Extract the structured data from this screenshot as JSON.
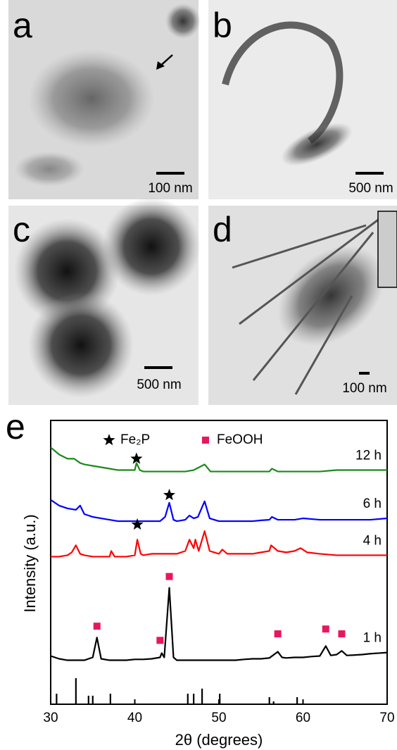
{
  "panels": [
    {
      "label": "a",
      "scale_bar": "100 nm"
    },
    {
      "label": "b",
      "scale_bar": "500 nm"
    },
    {
      "label": "c",
      "scale_bar": "500 nm"
    },
    {
      "label": "d",
      "scale_bar": "100 nm"
    }
  ],
  "chart_data": {
    "type": "line",
    "panel_label": "e",
    "x_label": "2θ (degrees)",
    "y_label": "Intensity (a.u.)",
    "xlim": [
      30,
      70
    ],
    "xticks": [
      30,
      40,
      50,
      60,
      70
    ],
    "ylim": [
      0,
      100
    ],
    "legend": "top",
    "series": [
      {
        "name": "12 h",
        "color": "#1a8a1a",
        "x": [
          30,
          31,
          32,
          32.8,
          33.5,
          34,
          35,
          36,
          37,
          38,
          39,
          40,
          40.2,
          40.6,
          41,
          42,
          43,
          44,
          45,
          46,
          47,
          48.3,
          49,
          50,
          52,
          54,
          56,
          56.3,
          57,
          58,
          60,
          62,
          64,
          66,
          68,
          70
        ],
        "values": [
          90.5,
          88,
          86.5,
          86.5,
          85,
          84.5,
          84,
          83.5,
          83,
          82.5,
          82.5,
          82.5,
          85,
          82.5,
          82,
          82,
          82,
          82,
          82,
          82,
          82.5,
          84.5,
          82,
          82,
          82,
          82,
          82,
          83,
          82,
          82,
          82,
          82,
          82.5,
          82.5,
          82.5,
          82.5
        ]
      },
      {
        "name": "6 h",
        "color": "#0000ff",
        "x": [
          30,
          31,
          32,
          33,
          33.5,
          34,
          35,
          36,
          37,
          38,
          39,
          40,
          41,
          42,
          43,
          43.6,
          44.1,
          44.6,
          45,
          46,
          46.5,
          47,
          47.5,
          48.3,
          48.9,
          50,
          51,
          52,
          53,
          54,
          55,
          56,
          56.3,
          57,
          58,
          59,
          60,
          62,
          64,
          66,
          68,
          70
        ],
        "values": [
          72,
          70,
          69,
          68.5,
          70,
          67,
          66,
          65.5,
          65,
          64.5,
          64.5,
          64.5,
          64.5,
          64.5,
          64.5,
          66,
          71,
          65,
          64.5,
          65,
          66.5,
          65.5,
          66,
          71.5,
          65.5,
          64.5,
          64.5,
          64.5,
          64.5,
          64.5,
          64.8,
          65,
          66,
          65,
          65,
          65,
          65.5,
          65,
          65,
          65,
          65,
          65.5
        ]
      },
      {
        "name": "4 h",
        "color": "#ff0000",
        "x": [
          30,
          31,
          32,
          32.5,
          33,
          33.5,
          34,
          35,
          36,
          37,
          37.2,
          37.6,
          38,
          39,
          40,
          40.3,
          40.7,
          41,
          42,
          43,
          44,
          45,
          46,
          46.5,
          47,
          47.2,
          47.6,
          48.3,
          48.9,
          50,
          50.4,
          51,
          52,
          53,
          54,
          55,
          56,
          56.2,
          57,
          58,
          59,
          59.7,
          60.5,
          62,
          64,
          66,
          68,
          70
        ],
        "values": [
          52,
          52,
          52.5,
          53.5,
          56,
          53,
          52.5,
          52,
          52,
          52,
          54,
          52,
          52,
          52,
          52.5,
          58,
          53,
          52.5,
          53,
          53,
          53,
          53,
          54,
          58,
          55,
          58,
          54,
          61,
          54,
          53,
          54.5,
          53,
          53,
          53,
          53,
          53.5,
          54,
          56,
          54,
          53.5,
          54,
          55,
          53.5,
          53,
          52.5,
          52.5,
          52.5,
          52.5
        ]
      },
      {
        "name": "1 h",
        "color": "#000000",
        "x": [
          30,
          31,
          32,
          33,
          34,
          35,
          35.5,
          36,
          37,
          38,
          39,
          40,
          41,
          42,
          43,
          43.2,
          43.5,
          44.1,
          44.6,
          45,
          46,
          47,
          48,
          49,
          50,
          51,
          52,
          53,
          54,
          55,
          56,
          57,
          57.5,
          58,
          59,
          60,
          61,
          62,
          62.7,
          63.3,
          64,
          64.6,
          65.2,
          66,
          67,
          68,
          69,
          70
        ],
        "values": [
          17,
          16,
          15.5,
          15.5,
          15.5,
          16.5,
          23.5,
          16,
          15.5,
          15.5,
          15.5,
          15.8,
          15.8,
          16,
          16.5,
          18,
          16.5,
          41,
          16.5,
          15.5,
          15.5,
          15.5,
          15.5,
          15.5,
          15.5,
          15.5,
          15.5,
          15.8,
          16,
          16,
          16.3,
          18.5,
          16.5,
          16.3,
          16.5,
          16.5,
          16.8,
          17,
          20.5,
          17.2,
          17.5,
          18.8,
          17.2,
          17.3,
          17.5,
          17.8,
          18,
          18.2
        ]
      }
    ],
    "reference_sticks": {
      "color": "#000000",
      "x": [
        30.7,
        33.0,
        34.5,
        35.0,
        37.1,
        46.3,
        47.0,
        48.0,
        50.1,
        56.0,
        56.5,
        59.3
      ],
      "values": [
        3.7,
        9.2,
        3,
        3,
        3.7,
        3.7,
        3.7,
        5.5,
        3.7,
        2.5,
        1,
        2.5
      ]
    },
    "markers": [
      {
        "name": "Fe₂P",
        "shape": "star",
        "color": "#000000",
        "x": [
          40.2,
          44.1,
          40.3
        ],
        "y": [
          86.5,
          73.7,
          63.3
        ]
      },
      {
        "name": "FeOOH",
        "shape": "square",
        "color": "#e8175d",
        "x": [
          35.5,
          43.0,
          44.1,
          57.0,
          62.7,
          64.6
        ],
        "y": [
          27.5,
          22.5,
          45,
          24.8,
          26.5,
          24.8
        ]
      }
    ]
  }
}
